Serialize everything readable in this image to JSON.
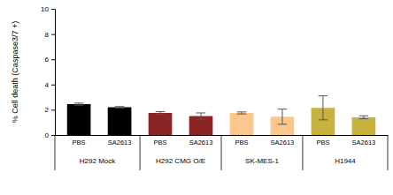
{
  "chart_data": {
    "type": "bar",
    "y_label": "% Cell death (Caspase3/7 +)",
    "categories": [
      "PBS",
      "SA2613",
      "PBS",
      "SA2613",
      "PBS",
      "SA2613",
      "PBS",
      "SA2613"
    ],
    "groups": [
      "H292 Mock",
      "H292 CMG O/E",
      "SK-MES-1",
      "H1944"
    ],
    "values": [
      2.45,
      2.2,
      1.75,
      1.5,
      1.75,
      1.45,
      2.15,
      1.4
    ],
    "errors": [
      0.08,
      0.05,
      0.1,
      0.25,
      0.08,
      0.6,
      0.95,
      0.12
    ],
    "colors": [
      "#000000",
      "#000000",
      "#8b2525",
      "#8b2525",
      "#fcc78c",
      "#fcc78c",
      "#c8b23e",
      "#c8b23e"
    ],
    "ylim": [
      0,
      10
    ],
    "yticks": [
      0,
      2,
      4,
      6,
      8,
      10
    ],
    "grid": false
  }
}
